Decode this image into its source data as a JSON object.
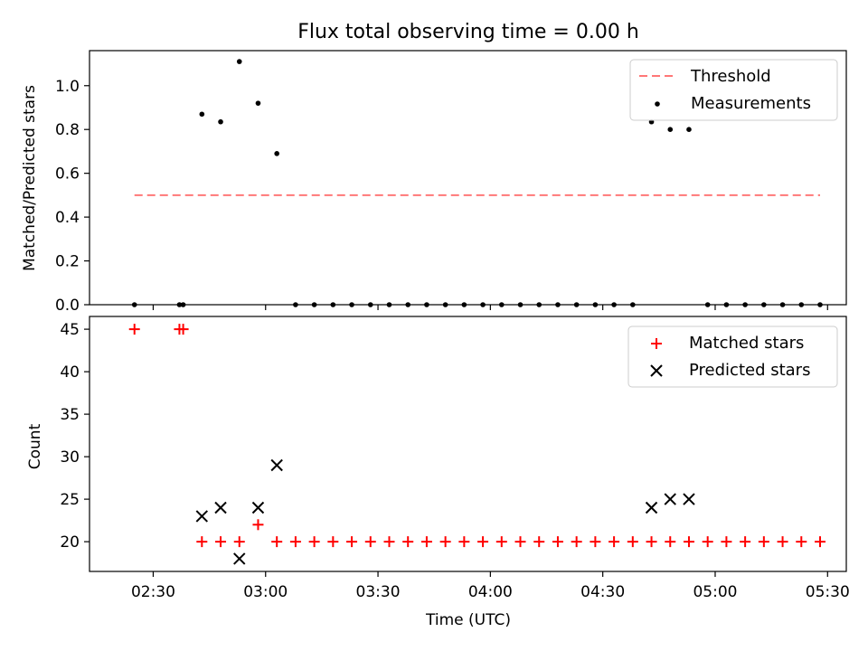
{
  "title": "Flux total observing time = 0.00 h",
  "chart_data": [
    {
      "type": "scatter",
      "ylabel": "Matched/Predicted stars",
      "ylim": [
        0,
        1.16
      ],
      "yticks": [
        "0.0",
        "0.2",
        "0.4",
        "0.6",
        "0.8",
        "1.0"
      ],
      "threshold": {
        "name": "Threshold",
        "value": 0.5,
        "x": [
          "02:25",
          "05:28"
        ],
        "color": "#ff7777"
      },
      "series": [
        {
          "name": "Measurements",
          "color": "#000000",
          "points": [
            [
              "02:25",
              0.0
            ],
            [
              "02:37",
              0.0
            ],
            [
              "02:38",
              0.0
            ],
            [
              "02:43",
              0.87
            ],
            [
              "02:48",
              0.835
            ],
            [
              "02:53",
              1.11
            ],
            [
              "02:58",
              0.92
            ],
            [
              "03:03",
              0.69
            ],
            [
              "03:08",
              0.0
            ],
            [
              "03:13",
              0.0
            ],
            [
              "03:18",
              0.0
            ],
            [
              "03:23",
              0.0
            ],
            [
              "03:28",
              0.0
            ],
            [
              "03:33",
              0.0
            ],
            [
              "03:38",
              0.0
            ],
            [
              "03:43",
              0.0
            ],
            [
              "03:48",
              0.0
            ],
            [
              "03:53",
              0.0
            ],
            [
              "03:58",
              0.0
            ],
            [
              "04:03",
              0.0
            ],
            [
              "04:08",
              0.0
            ],
            [
              "04:13",
              0.0
            ],
            [
              "04:18",
              0.0
            ],
            [
              "04:23",
              0.0
            ],
            [
              "04:28",
              0.0
            ],
            [
              "04:33",
              0.0
            ],
            [
              "04:38",
              0.0
            ],
            [
              "04:43",
              0.835
            ],
            [
              "04:48",
              0.8
            ],
            [
              "04:53",
              0.8
            ],
            [
              "04:58",
              0.0
            ],
            [
              "05:03",
              0.0
            ],
            [
              "05:08",
              0.0
            ],
            [
              "05:13",
              0.0
            ],
            [
              "05:18",
              0.0
            ],
            [
              "05:23",
              0.0
            ],
            [
              "05:28",
              0.0
            ]
          ]
        }
      ],
      "legend": {
        "position": "top-right",
        "entries": [
          "Threshold",
          "Measurements"
        ]
      }
    },
    {
      "type": "scatter",
      "xlabel": "Time (UTC)",
      "ylabel": "Count",
      "ylim": [
        16.5,
        46.5
      ],
      "yticks": [
        "20",
        "25",
        "30",
        "35",
        "40",
        "45"
      ],
      "xticks": [
        "02:30",
        "03:00",
        "03:30",
        "04:00",
        "04:30",
        "05:00",
        "05:30"
      ],
      "xlim": [
        "02:13",
        "05:35"
      ],
      "series": [
        {
          "name": "Matched stars",
          "marker": "plus",
          "color": "#ff0000",
          "points": [
            [
              "02:25",
              45
            ],
            [
              "02:37",
              45
            ],
            [
              "02:38",
              45
            ],
            [
              "02:43",
              20
            ],
            [
              "02:48",
              20
            ],
            [
              "02:53",
              20
            ],
            [
              "02:58",
              22
            ],
            [
              "03:03",
              20
            ],
            [
              "03:08",
              20
            ],
            [
              "03:13",
              20
            ],
            [
              "03:18",
              20
            ],
            [
              "03:23",
              20
            ],
            [
              "03:28",
              20
            ],
            [
              "03:33",
              20
            ],
            [
              "03:38",
              20
            ],
            [
              "03:43",
              20
            ],
            [
              "03:48",
              20
            ],
            [
              "03:53",
              20
            ],
            [
              "03:58",
              20
            ],
            [
              "04:03",
              20
            ],
            [
              "04:08",
              20
            ],
            [
              "04:13",
              20
            ],
            [
              "04:18",
              20
            ],
            [
              "04:23",
              20
            ],
            [
              "04:28",
              20
            ],
            [
              "04:33",
              20
            ],
            [
              "04:38",
              20
            ],
            [
              "04:43",
              20
            ],
            [
              "04:48",
              20
            ],
            [
              "04:53",
              20
            ],
            [
              "04:58",
              20
            ],
            [
              "05:03",
              20
            ],
            [
              "05:08",
              20
            ],
            [
              "05:13",
              20
            ],
            [
              "05:18",
              20
            ],
            [
              "05:23",
              20
            ],
            [
              "05:28",
              20
            ]
          ]
        },
        {
          "name": "Predicted stars",
          "marker": "x",
          "color": "#000000",
          "points": [
            [
              "02:43",
              23
            ],
            [
              "02:48",
              24
            ],
            [
              "02:53",
              18
            ],
            [
              "02:58",
              24
            ],
            [
              "03:03",
              29
            ],
            [
              "04:43",
              24
            ],
            [
              "04:48",
              25
            ],
            [
              "04:53",
              25
            ]
          ]
        }
      ],
      "legend": {
        "position": "top-right",
        "entries": [
          "Matched stars",
          "Predicted stars"
        ]
      }
    }
  ]
}
